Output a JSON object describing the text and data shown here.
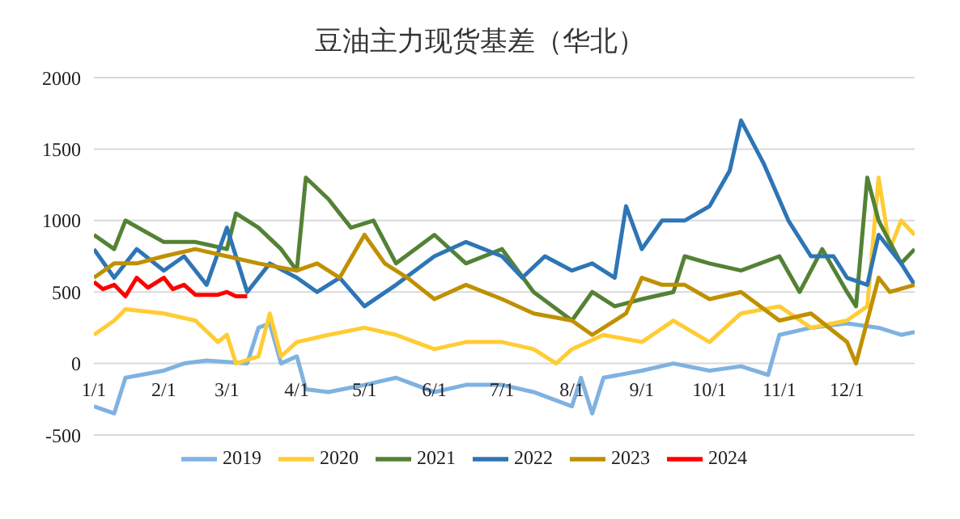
{
  "chart_data": {
    "type": "line",
    "title": "豆油主力现货基差（华北）",
    "ylim": [
      -500,
      2000
    ],
    "yticks": [
      -500,
      0,
      500,
      1000,
      1500,
      2000
    ],
    "xlim": [
      "--01-01",
      "--12-31"
    ],
    "xticks": [
      {
        "value": "--01-01",
        "label": "1/1"
      },
      {
        "value": "--02-01",
        "label": "2/1"
      },
      {
        "value": "--03-01",
        "label": "3/1"
      },
      {
        "value": "--04-01",
        "label": "4/1"
      },
      {
        "value": "--05-01",
        "label": "5/1"
      },
      {
        "value": "--06-01",
        "label": "6/1"
      },
      {
        "value": "--07-01",
        "label": "7/1"
      },
      {
        "value": "--08-01",
        "label": "8/1"
      },
      {
        "value": "--09-01",
        "label": "9/1"
      },
      {
        "value": "--10-01",
        "label": "10/1"
      },
      {
        "value": "--11-01",
        "label": "11/1"
      },
      {
        "value": "--12-01",
        "label": "12/1"
      }
    ],
    "grid": "y",
    "legend": "bottom",
    "marker": "none",
    "line_style": "solid",
    "series": [
      {
        "name": "2019",
        "color": "#7fb2e0",
        "x": [
          "--01-01",
          "--01-10",
          "--01-15",
          "--02-01",
          "--02-10",
          "--02-20",
          "--03-01",
          "--03-10",
          "--03-15",
          "--03-20",
          "--03-25",
          "--04-01",
          "--04-05",
          "--04-15",
          "--05-01",
          "--05-15",
          "--06-01",
          "--06-15",
          "--07-01",
          "--07-15",
          "--08-01",
          "--08-05",
          "--08-10",
          "--08-15",
          "--09-01",
          "--09-15",
          "--10-01",
          "--10-15",
          "--10-27",
          "--11-01",
          "--11-15",
          "--12-01",
          "--12-15",
          "--12-25",
          "--12-31"
        ],
        "values": [
          -300,
          -350,
          -100,
          -50,
          0,
          20,
          10,
          0,
          250,
          280,
          0,
          50,
          -180,
          -200,
          -150,
          -100,
          -200,
          -150,
          -150,
          -200,
          -300,
          -100,
          -350,
          -100,
          -50,
          0,
          -50,
          -20,
          -80,
          200,
          250,
          280,
          250,
          200,
          220
        ]
      },
      {
        "name": "2020",
        "color": "#ffcc33",
        "x": [
          "--01-01",
          "--01-10",
          "--01-15",
          "--02-01",
          "--02-15",
          "--02-25",
          "--03-01",
          "--03-05",
          "--03-15",
          "--03-20",
          "--03-25",
          "--04-01",
          "--04-15",
          "--05-01",
          "--05-15",
          "--06-01",
          "--06-15",
          "--07-01",
          "--07-15",
          "--07-25",
          "--08-01",
          "--08-15",
          "--09-01",
          "--09-15",
          "--10-01",
          "--10-15",
          "--11-01",
          "--11-15",
          "--12-01",
          "--12-10",
          "--12-15",
          "--12-20",
          "--12-25",
          "--12-31"
        ],
        "values": [
          200,
          300,
          380,
          350,
          300,
          150,
          200,
          0,
          50,
          350,
          50,
          150,
          200,
          250,
          200,
          100,
          150,
          150,
          100,
          0,
          100,
          200,
          150,
          300,
          150,
          350,
          400,
          250,
          300,
          400,
          1300,
          800,
          1000,
          900
        ]
      },
      {
        "name": "2021",
        "color": "#548235",
        "x": [
          "--01-01",
          "--01-10",
          "--01-15",
          "--02-01",
          "--02-15",
          "--03-01",
          "--03-05",
          "--03-15",
          "--03-25",
          "--04-01",
          "--04-05",
          "--04-15",
          "--04-25",
          "--05-05",
          "--05-15",
          "--06-01",
          "--06-15",
          "--07-01",
          "--07-15",
          "--08-01",
          "--08-10",
          "--08-20",
          "--09-01",
          "--09-15",
          "--09-20",
          "--10-01",
          "--10-15",
          "--11-01",
          "--11-10",
          "--11-20",
          "--12-01",
          "--12-05",
          "--12-10",
          "--12-15",
          "--12-25",
          "--12-31"
        ],
        "values": [
          900,
          800,
          1000,
          850,
          850,
          800,
          1050,
          950,
          800,
          650,
          1300,
          1150,
          950,
          1000,
          700,
          900,
          700,
          800,
          500,
          300,
          500,
          400,
          450,
          500,
          750,
          700,
          650,
          750,
          500,
          800,
          500,
          400,
          1300,
          1000,
          700,
          800
        ]
      },
      {
        "name": "2022",
        "color": "#2e75b6",
        "x": [
          "--01-01",
          "--01-10",
          "--01-20",
          "--02-01",
          "--02-10",
          "--02-20",
          "--03-01",
          "--03-10",
          "--03-20",
          "--04-01",
          "--04-10",
          "--04-20",
          "--05-01",
          "--05-15",
          "--06-01",
          "--06-15",
          "--07-01",
          "--07-10",
          "--07-20",
          "--08-01",
          "--08-10",
          "--08-20",
          "--08-25",
          "--09-01",
          "--09-10",
          "--09-20",
          "--10-01",
          "--10-10",
          "--10-15",
          "--10-25",
          "--11-05",
          "--11-15",
          "--11-25",
          "--12-01",
          "--12-10",
          "--12-15",
          "--12-25",
          "--12-31"
        ],
        "values": [
          800,
          600,
          800,
          650,
          750,
          550,
          950,
          500,
          700,
          600,
          500,
          600,
          400,
          550,
          750,
          850,
          750,
          600,
          750,
          650,
          700,
          600,
          1100,
          800,
          1000,
          1000,
          1100,
          1350,
          1700,
          1400,
          1000,
          750,
          750,
          600,
          550,
          900,
          700,
          550
        ]
      },
      {
        "name": "2023",
        "color": "#c09000",
        "x": [
          "--01-01",
          "--01-10",
          "--01-20",
          "--02-01",
          "--02-15",
          "--03-01",
          "--03-15",
          "--04-01",
          "--04-10",
          "--04-20",
          "--05-01",
          "--05-10",
          "--05-20",
          "--06-01",
          "--06-15",
          "--07-01",
          "--07-15",
          "--08-01",
          "--08-10",
          "--08-25",
          "--09-01",
          "--09-10",
          "--09-20",
          "--10-01",
          "--10-15",
          "--11-01",
          "--11-15",
          "--12-01",
          "--12-05",
          "--12-10",
          "--12-15",
          "--12-20",
          "--12-31"
        ],
        "values": [
          600,
          700,
          700,
          750,
          800,
          750,
          700,
          650,
          700,
          600,
          900,
          700,
          600,
          450,
          550,
          450,
          350,
          300,
          200,
          350,
          600,
          550,
          550,
          450,
          500,
          300,
          350,
          150,
          0,
          300,
          600,
          500,
          550
        ]
      },
      {
        "name": "2024",
        "color": "#ff0000",
        "x": [
          "--01-01",
          "--01-05",
          "--01-10",
          "--01-15",
          "--01-20",
          "--01-25",
          "--02-01",
          "--02-05",
          "--02-10",
          "--02-15",
          "--02-25",
          "--03-01",
          "--03-05",
          "--03-10"
        ],
        "values": [
          570,
          520,
          550,
          470,
          600,
          530,
          600,
          520,
          550,
          480,
          480,
          500,
          470,
          470
        ]
      }
    ]
  }
}
